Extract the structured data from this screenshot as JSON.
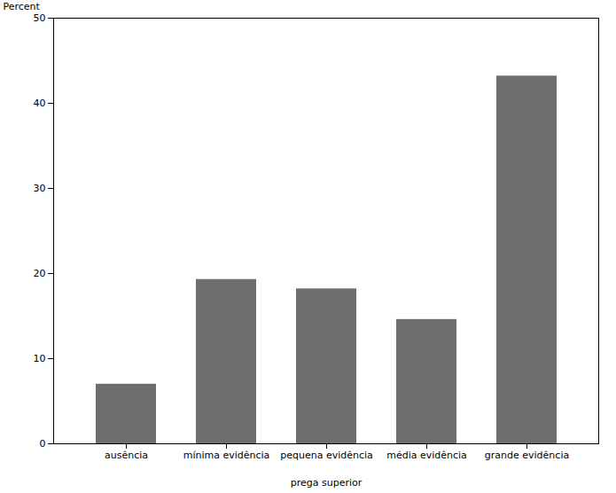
{
  "chart_data": {
    "type": "bar",
    "categories": [
      "ausência",
      "mínima evidência",
      "pequena evidência",
      "média evidência",
      "grande evidência"
    ],
    "values": [
      7.0,
      19.3,
      18.2,
      14.6,
      43.2
    ],
    "color": "#6e6e6e",
    "xlabel": "prega superior",
    "ylabel": "Percent",
    "ylim": [
      0,
      50
    ],
    "yticks": [
      0,
      10,
      20,
      30,
      40,
      50
    ],
    "grid": false
  }
}
